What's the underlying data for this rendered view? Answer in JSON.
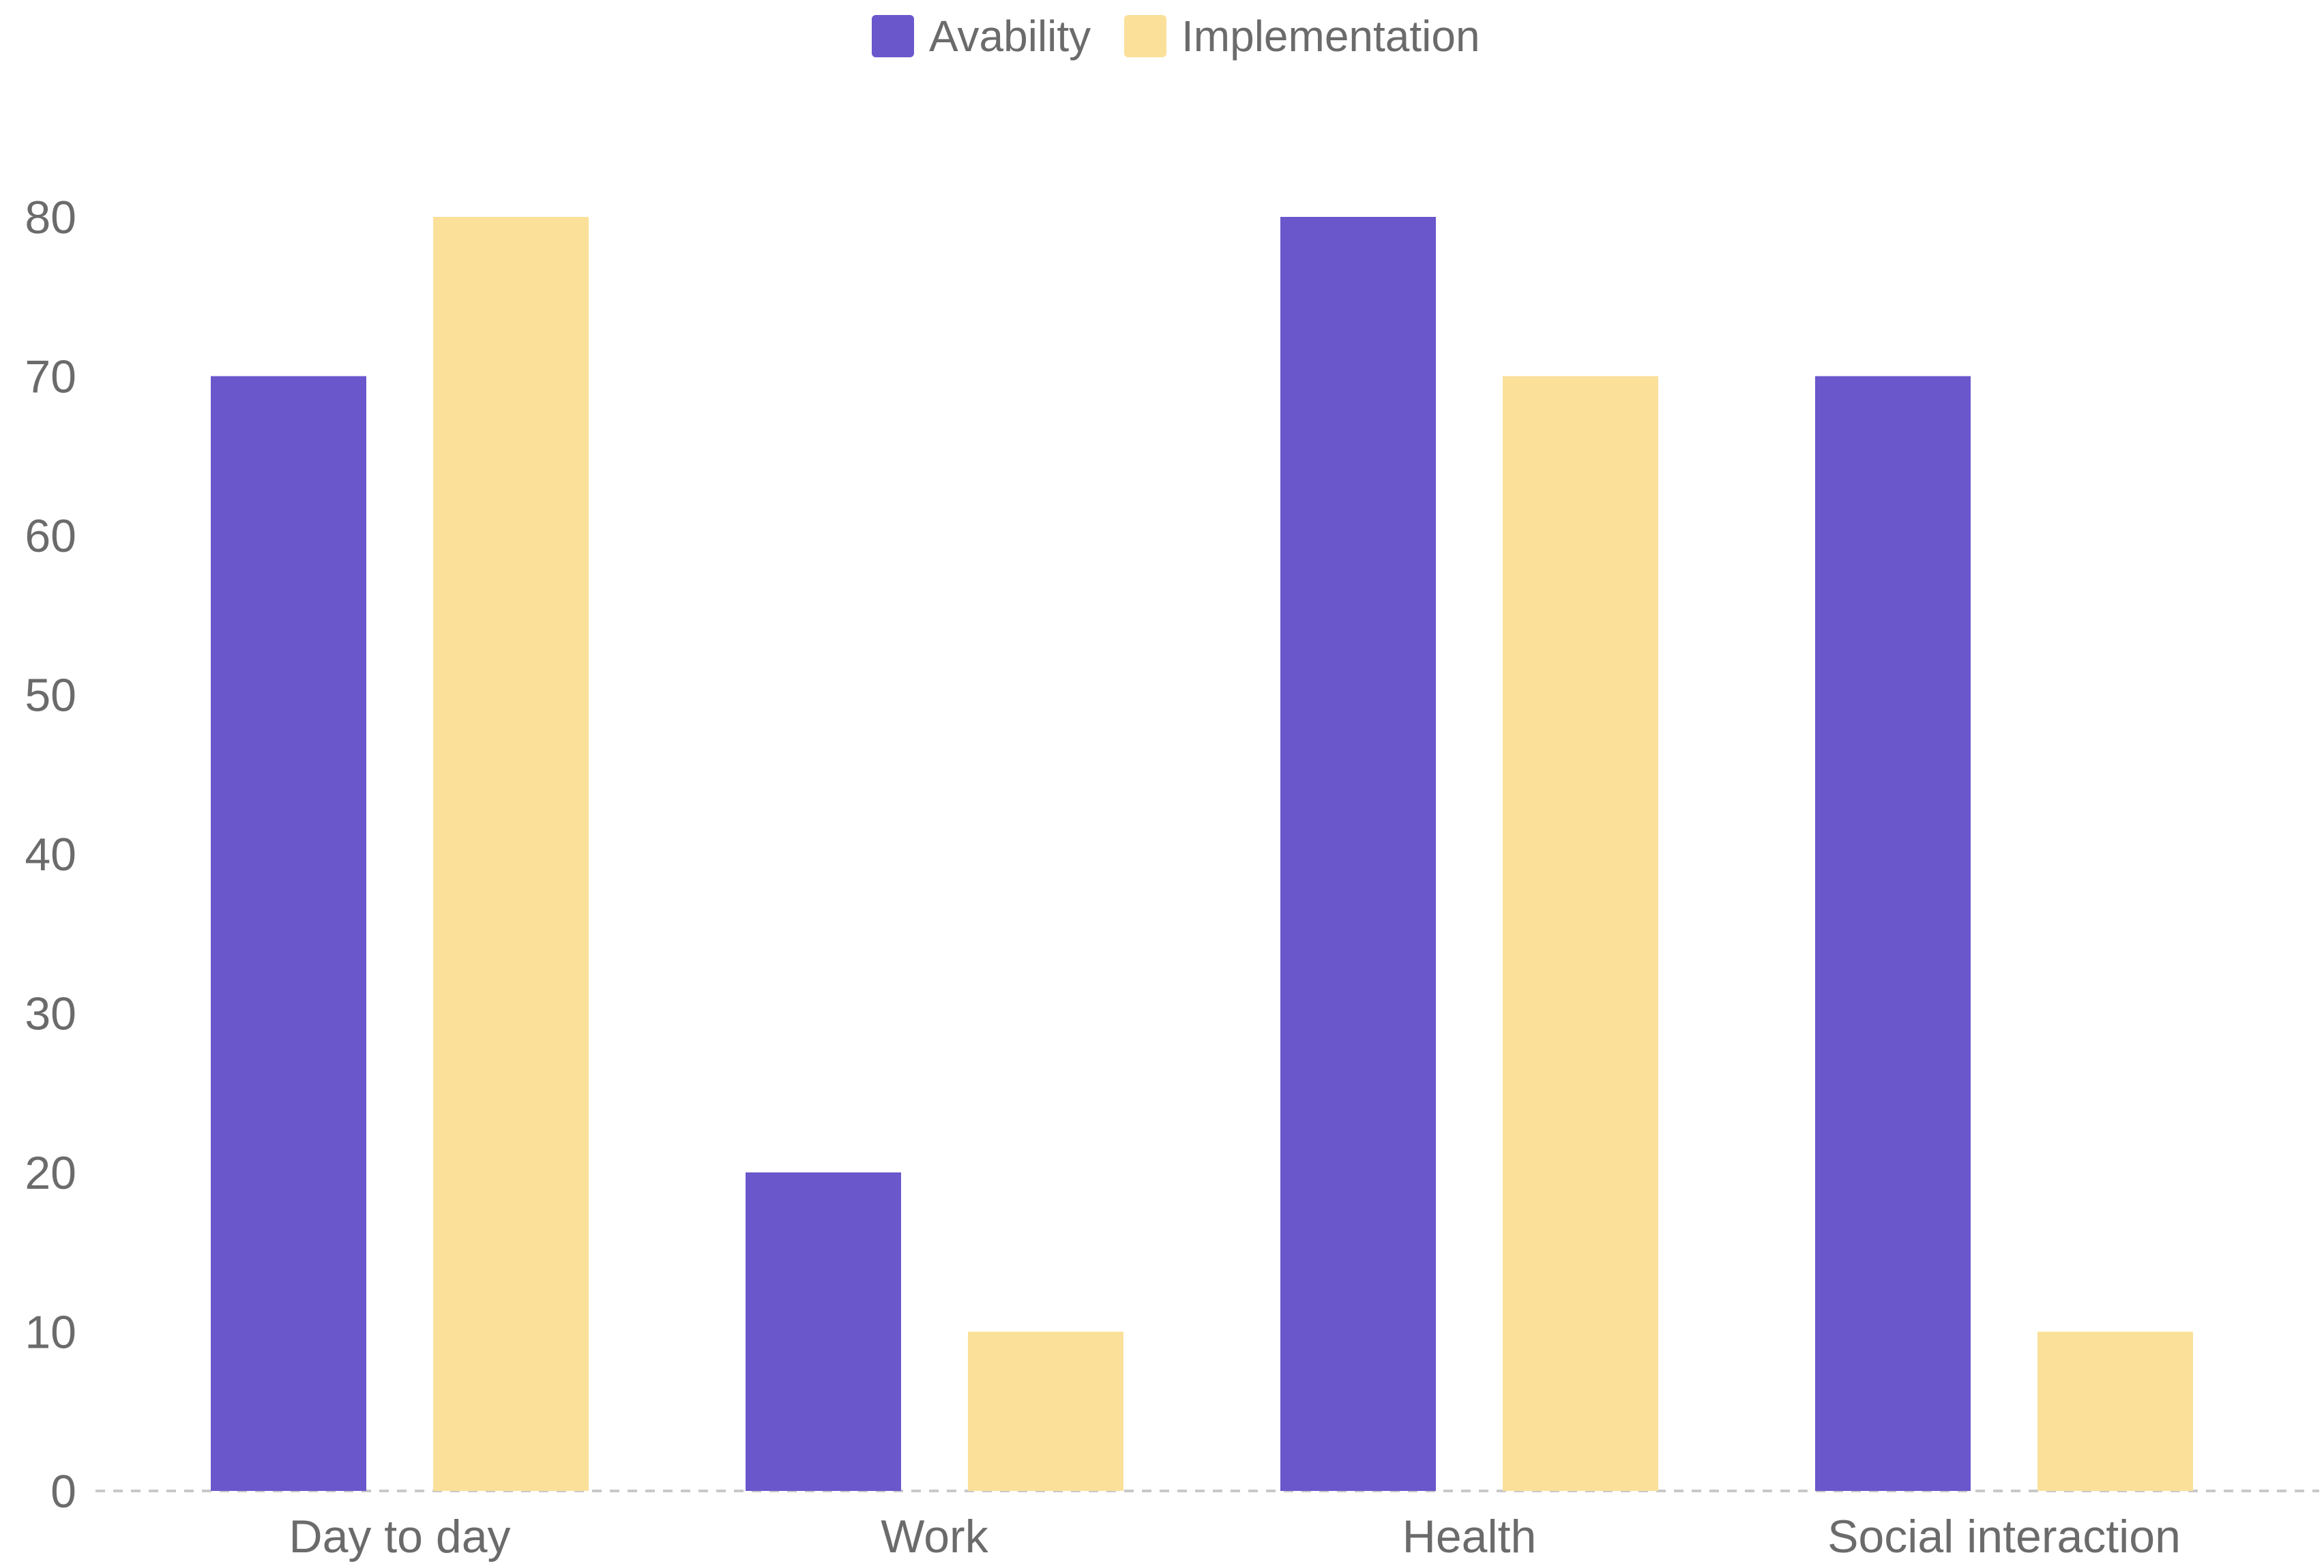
{
  "chart_data": {
    "type": "bar",
    "categories": [
      "Day to day",
      "Work",
      "Health",
      "Social interaction"
    ],
    "series": [
      {
        "name": "Avability",
        "values": [
          70,
          20,
          80,
          70
        ],
        "color": "#6a57cc"
      },
      {
        "name": "Implementation",
        "values": [
          80,
          10,
          70,
          10
        ],
        "color": "#fbe09a"
      }
    ],
    "yticks": [
      "0",
      "10",
      "20",
      "30",
      "40",
      "50",
      "60",
      "70",
      "80"
    ],
    "ylim": [
      0,
      80
    ],
    "legend_position": "top-center",
    "grid": false,
    "baseline_style": "dashed",
    "axis_text_color": "#6b6b6b",
    "baseline_color": "#c8c8c8"
  }
}
